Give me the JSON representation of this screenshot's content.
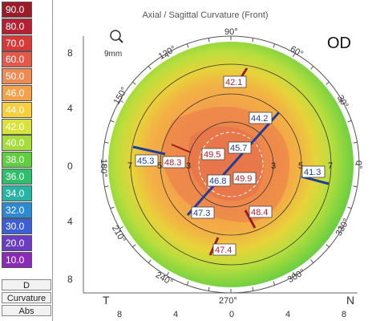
{
  "title": "Axial / Sagittal Curvature (Front)",
  "eye": "OD",
  "magnifier_label": "9mm",
  "scale": {
    "items": [
      {
        "value": "90.0",
        "color": "#9a1c28",
        "text": "#ffffff"
      },
      {
        "value": "80.0",
        "color": "#b52132",
        "text": "#ffffff"
      },
      {
        "value": "70.0",
        "color": "#d83a3a",
        "text": "#ffffff"
      },
      {
        "value": "60.0",
        "color": "#e45a48",
        "text": "#ffffff"
      },
      {
        "value": "50.0",
        "color": "#ee8a52",
        "text": "#ffffff"
      },
      {
        "value": "46.0",
        "color": "#f5a04a",
        "text": "#ffffff"
      },
      {
        "value": "44.0",
        "color": "#f7cf3a",
        "text": "#ffffff"
      },
      {
        "value": "42.0",
        "color": "#d8e23a",
        "text": "#ffffff"
      },
      {
        "value": "40.0",
        "color": "#a6dc3c",
        "text": "#ffffff"
      },
      {
        "value": "38.0",
        "color": "#5fcf3e",
        "text": "#ffffff"
      },
      {
        "value": "36.0",
        "color": "#2fbf6a",
        "text": "#ffffff"
      },
      {
        "value": "34.0",
        "color": "#28b4a4",
        "text": "#ffffff"
      },
      {
        "value": "32.0",
        "color": "#2c8ad2",
        "text": "#ffffff"
      },
      {
        "value": "30.0",
        "color": "#3c5ed6",
        "text": "#ffffff"
      },
      {
        "value": "20.0",
        "color": "#6a3cc4",
        "text": "#ffffff"
      },
      {
        "value": "10.0",
        "color": "#8a2ab8",
        "text": "#ffffff"
      }
    ],
    "unit": "D",
    "mode": "Curvature",
    "abs": "Abs"
  },
  "axis_labels": {
    "y_ticks": [
      "8",
      "4",
      "0",
      "4",
      "8"
    ],
    "x_ticks": [
      "8",
      "4",
      "0",
      "4",
      "8"
    ],
    "temporal": "T",
    "nasal": "N"
  },
  "angle_labels": [
    "90°",
    "60°",
    "30°",
    "0°",
    "330°",
    "300°",
    "270°",
    "240°",
    "210°",
    "180°",
    "150°",
    "120°"
  ],
  "ring_labels": {
    "left_outer": "7",
    "left_inner": "5",
    "left_center": "3",
    "right_center": "3",
    "right_inner": "5",
    "right_outer": "7"
  },
  "readings": {
    "top": "42.1",
    "upper_right": "44.2",
    "center": "45.7",
    "left_outer": "45.3",
    "left_inner": "48.3",
    "center_left": "49.5",
    "center_low": "46.8",
    "center_right": "49.9",
    "right_outer": "41.3",
    "lower_left": "47.3",
    "lower_right": "48.4",
    "bottom": "47.4"
  },
  "colors": {
    "reading_box_border": "#444444",
    "axis_blue": "#1d3f9a",
    "axis_red": "#9a1f1f"
  }
}
